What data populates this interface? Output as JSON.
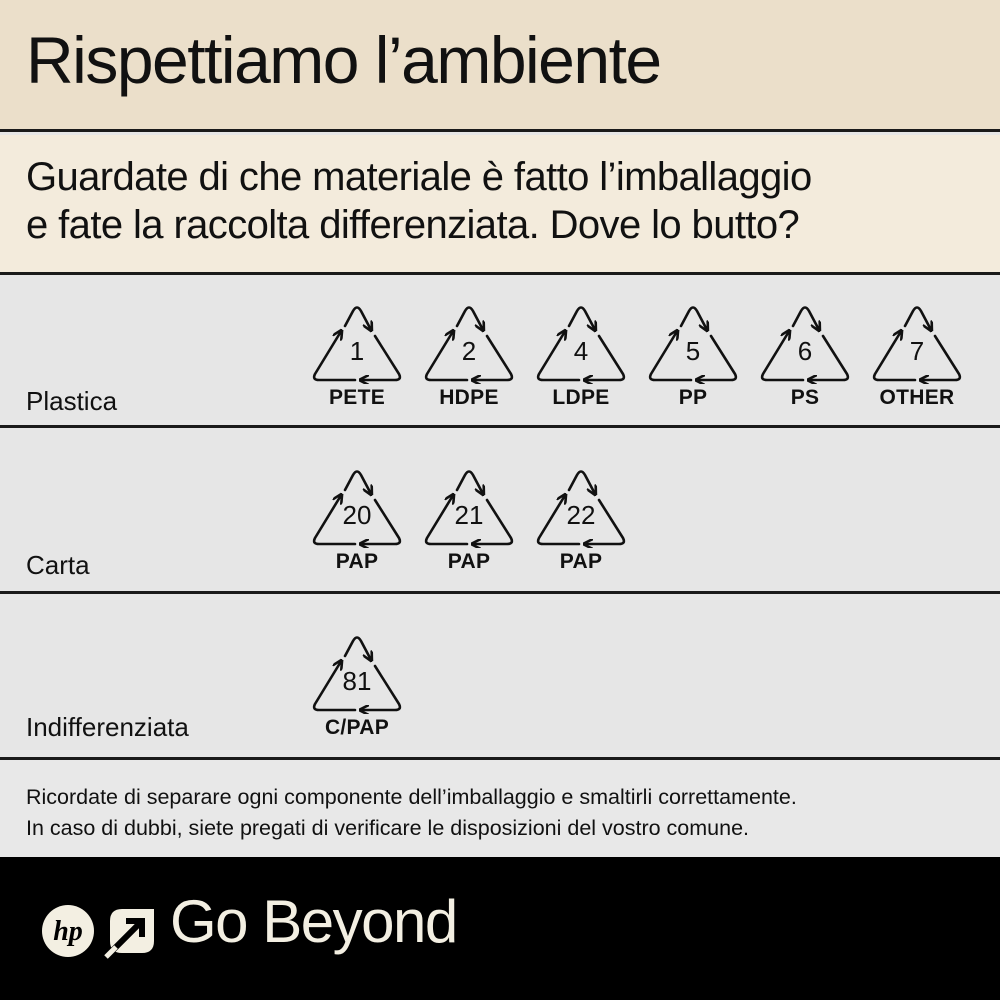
{
  "title": "Rispettiamo l’ambiente",
  "subtitle": [
    "Guardate di che materiale è fatto l’imballaggio",
    "e fate la raccolta differenziata.  Dove lo butto?"
  ],
  "rows": [
    {
      "label": "Plastica",
      "symbols": [
        {
          "number": "1",
          "code": "PETE"
        },
        {
          "number": "2",
          "code": "HDPE"
        },
        {
          "number": "4",
          "code": "LDPE"
        },
        {
          "number": "5",
          "code": "PP"
        },
        {
          "number": "6",
          "code": "PS"
        },
        {
          "number": "7",
          "code": "OTHER"
        }
      ]
    },
    {
      "label": "Carta",
      "symbols": [
        {
          "number": "20",
          "code": "PAP"
        },
        {
          "number": "21",
          "code": "PAP"
        },
        {
          "number": "22",
          "code": "PAP"
        }
      ]
    },
    {
      "label": "Indifferenziata",
      "symbols": [
        {
          "number": "81",
          "code": "C/PAP"
        }
      ]
    }
  ],
  "note": [
    "Ricordate di separare ogni componente dell’imballaggio e smaltirli correttamente.",
    "In caso di dubbi, siete pregati di verificare le disposizioni del vostro comune."
  ],
  "footer": {
    "logo": "hp",
    "tagline": "Go Beyond"
  },
  "colors": {
    "title_band": "#ebdfca",
    "subtitle_band": "#f3ebdc",
    "rows": "#e6e6e6",
    "footer": "#000000",
    "footer_text": "#f3efe2"
  }
}
